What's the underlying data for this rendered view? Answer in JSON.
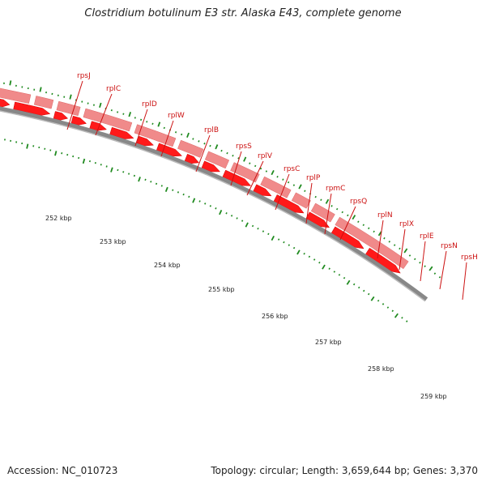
{
  "title": "Clostridium botulinum E3 str. Alaska E43, complete genome",
  "footer": {
    "accession": "Accession: NC_010723",
    "stats": "Topology: circular; Length: 3,659,644 bp; Genes: 3,370"
  },
  "colors": {
    "strand_plus": "#f08a8a",
    "strand_minus": "#ff1a1a",
    "tick": "#1f8a1f",
    "label": "#cc1111",
    "backbone": "#888888"
  },
  "genes": [
    "rpsJ",
    "rplC",
    "rplD",
    "rplW",
    "rplB",
    "rpsS",
    "rplV",
    "rpsC",
    "rplP",
    "rpmC",
    "rpsQ",
    "rplN",
    "rplX",
    "rplE",
    "rpsN",
    "rpsH"
  ],
  "kbp_labels": [
    "252 kbp",
    "253 kbp",
    "254 kbp",
    "255 kbp",
    "256 kbp",
    "257 kbp",
    "258 kbp",
    "259 kbp"
  ]
}
